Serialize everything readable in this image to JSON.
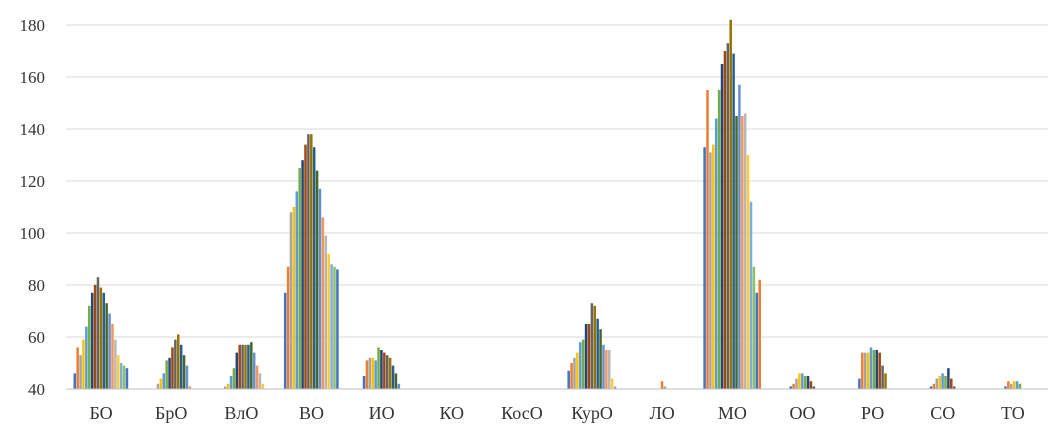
{
  "chart_data": {
    "type": "bar",
    "title": "",
    "xlabel": "",
    "ylabel": "",
    "ylim": [
      40,
      180
    ],
    "yticks": [
      40,
      60,
      80,
      100,
      120,
      140,
      160,
      180
    ],
    "grid": true,
    "legend": "none",
    "categories": [
      "БО",
      "БрО",
      "ВлО",
      "ВО",
      "ИО",
      "КО",
      "КосО",
      "КурО",
      "ЛО",
      "МО",
      "ОО",
      "РО",
      "СО",
      "ТО"
    ],
    "palette": [
      "#4472c4",
      "#ed7d31",
      "#a5a5a5",
      "#ffc000",
      "#5b9bd5",
      "#70ad47",
      "#264478",
      "#9e480e",
      "#636363",
      "#997300",
      "#255e91",
      "#43682b",
      "#698ed0",
      "#f1975a",
      "#b7b7b7",
      "#ffcd33",
      "#7cafdd",
      "#8cc168"
    ],
    "series_values": [
      [
        46,
        56,
        53,
        59,
        64,
        72,
        77,
        80,
        83,
        79,
        77,
        73,
        69,
        65,
        59,
        53,
        50,
        49,
        48
      ],
      [
        40,
        40,
        42,
        44,
        46,
        51,
        52,
        56,
        59,
        61,
        57,
        53,
        49,
        41
      ],
      [
        40,
        40,
        41,
        42,
        45,
        48,
        54,
        57,
        57,
        57,
        57,
        58,
        54,
        49,
        46,
        42
      ],
      [
        77,
        87,
        108,
        110,
        116,
        125,
        128,
        134,
        138,
        138,
        133,
        124,
        117,
        106,
        99,
        92,
        88,
        87,
        86
      ],
      [
        45,
        51,
        52,
        52,
        51,
        56,
        55,
        54,
        53,
        52,
        49,
        46,
        42
      ],
      [],
      [],
      [
        47,
        50,
        52,
        54,
        58,
        59,
        65,
        65,
        73,
        72,
        67,
        63,
        57,
        55,
        55,
        44,
        41
      ],
      [
        40,
        43,
        41
      ],
      [
        133,
        155,
        131,
        134,
        144,
        155,
        165,
        170,
        173,
        182,
        169,
        145,
        157,
        145,
        146,
        130,
        112,
        87,
        77,
        82
      ],
      [
        41,
        42,
        44,
        46,
        46,
        45,
        45,
        43,
        41
      ],
      [
        44,
        54,
        54,
        54,
        56,
        55,
        55,
        54,
        49,
        46
      ],
      [
        41,
        42,
        44,
        45,
        46,
        45,
        48,
        44,
        41
      ],
      [
        41,
        43,
        42,
        43,
        43,
        42
      ]
    ]
  }
}
